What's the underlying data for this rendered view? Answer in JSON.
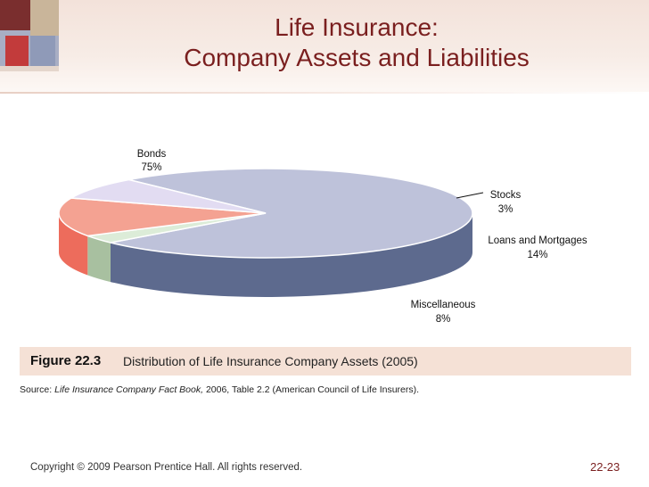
{
  "slide": {
    "title_line1": "Life Insurance:",
    "title_line2": "Company Assets and Liabilities",
    "copyright": "Copyright © 2009 Pearson Prentice Hall. All rights reserved.",
    "page_number": "22-23"
  },
  "figure": {
    "label": "Figure 22.3",
    "caption": "Distribution of Life Insurance Company Assets (2005)",
    "source_prefix": "Source: ",
    "source_title": "Life Insurance Company Fact Book,",
    "source_rest": " 2006, Table 2.2 (American Council of Life Insurers)."
  },
  "colors": {
    "title": "#7a1f1f",
    "caption_bg": "#f5e1d6"
  },
  "chart_data": {
    "type": "pie",
    "style": "3d",
    "slices": [
      {
        "name": "Bonds",
        "value": 75,
        "label": "75%",
        "top_color": "#bec2da",
        "side_color": "#5d6a8e"
      },
      {
        "name": "Stocks",
        "value": 3,
        "label": "3%",
        "top_color": "#dcecd8",
        "side_color": "#a8c0a0"
      },
      {
        "name": "Loans and Mortgages",
        "value": 14,
        "label": "14%",
        "top_color": "#f4a292",
        "side_color": "#ed6c5c"
      },
      {
        "name": "Miscellaneous",
        "value": 8,
        "label": "8%",
        "top_color": "#e2dcf2",
        "side_color": "#a890c8"
      }
    ]
  }
}
